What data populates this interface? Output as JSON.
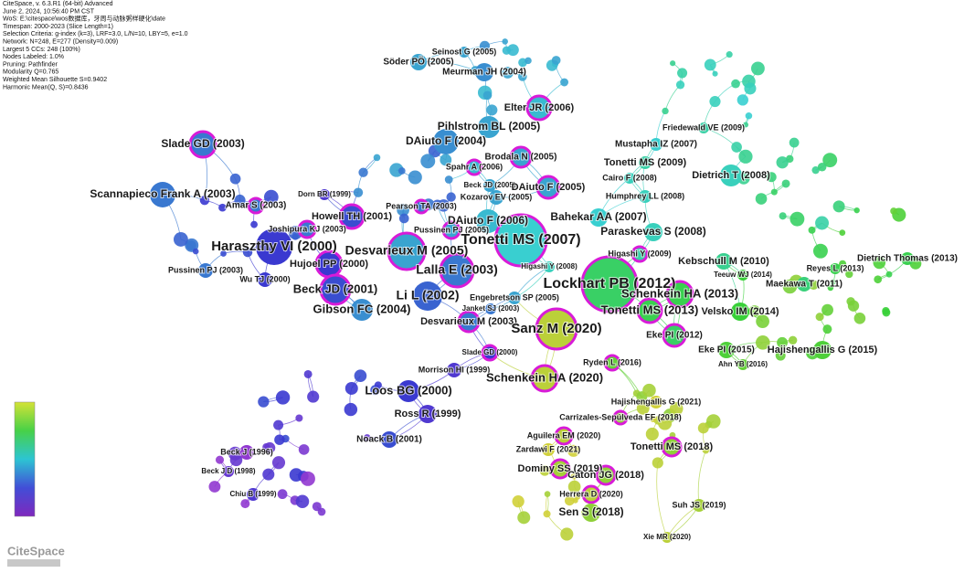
{
  "header": {
    "lines": [
      "CiteSpace, v. 6.3.R1 (64-bit) Advanced",
      "June 2, 2024, 10:56:40 PM CST",
      "WoS: E:\\citespace\\wos数据库，牙周与动脉粥样硬化\\date",
      "Timespan: 2000-2023 (Slice Length=1)",
      "Selection Criteria: g-index (k=3), LRF=3.0, L/N=10, LBY=5, e=1.0",
      "Network: N=248, E=277 (Density=0.009)",
      "Largest 5 CCs: 248 (100%)",
      "Nodes Labeled: 1.0%",
      "Pruning: Pathfinder",
      "Modularity Q=0.765",
      "Weighted Mean Silhouette S=0.9402",
      "Harmonic Mean(Q, S)=0.8436"
    ]
  },
  "logo": "CiteSpace",
  "nodes": [
    {
      "label": "Seinost G (2005)"
    },
    {
      "label": "Söder PÖ (2005)"
    },
    {
      "label": "Meurman JH (2004)"
    },
    {
      "label": "Elter JR (2006)"
    },
    {
      "label": "Pihlstrom BL (2005)"
    },
    {
      "label": "Slade GD (2003)"
    },
    {
      "label": "DAiuto F (2004)"
    },
    {
      "label": "Brodala N (2005)"
    },
    {
      "label": "Spahr A (2006)"
    },
    {
      "label": "Friedewald VE (2009)"
    },
    {
      "label": "Mustapha IZ (2007)"
    },
    {
      "label": "Tonetti MS (2009)"
    },
    {
      "label": "Cairo F (2008)"
    },
    {
      "label": "Dietrich T (2008)"
    },
    {
      "label": "Scannapieco Frank A (2003)"
    },
    {
      "label": "Dorn BR (1999)"
    },
    {
      "label": "Beck JD (2005)"
    },
    {
      "label": "DAiuto F (2005)"
    },
    {
      "label": "Kozarov EV (2005)"
    },
    {
      "label": "Humphrey LL (2008)"
    },
    {
      "label": "Amar S (2003)"
    },
    {
      "label": "Pearson TA (2003)"
    },
    {
      "label": "Howell TH (2001)"
    },
    {
      "label": "DAiuto F (2006)"
    },
    {
      "label": "Bahekar AA (2007)"
    },
    {
      "label": "Joshipura KJ (2003)"
    },
    {
      "label": "Pussinen PJ (2005)"
    },
    {
      "label": "Tonetti MS (2007)"
    },
    {
      "label": "Paraskevas S (2008)"
    },
    {
      "label": "Higashi Y (2009)"
    },
    {
      "label": "Haraszthy VI (2000)"
    },
    {
      "label": "Desvarieux M (2005)"
    },
    {
      "label": "Hujoel PP (2000)"
    },
    {
      "label": "Higashi Y (2008)"
    },
    {
      "label": "Kebschull M (2010)"
    },
    {
      "label": "Dietrich Thomas (2013)"
    },
    {
      "label": "Reyes L (2013)"
    },
    {
      "label": "Teeuw WJ (2014)"
    },
    {
      "label": "Pussinen PJ (2003)"
    },
    {
      "label": "Lalla E (2003)"
    },
    {
      "label": "Wu TJ (2000)"
    },
    {
      "label": "Lockhart PB (2012)"
    },
    {
      "label": "Maekawa T (2011)"
    },
    {
      "label": "Beck JD (2001)"
    },
    {
      "label": "Li L (2002)"
    },
    {
      "label": "Schenkein HA (2013)"
    },
    {
      "label": "Engebretson SP (2005)"
    },
    {
      "label": "Janket SJ (2003)"
    },
    {
      "label": "Gibson FC (2004)"
    },
    {
      "label": "Tonetti MS (2013)"
    },
    {
      "label": "Velsko IM (2014)"
    },
    {
      "label": "Desvarieux M (2003)"
    },
    {
      "label": "Sanz M (2020)"
    },
    {
      "label": "Eke PI (2012)"
    },
    {
      "label": "Eke PI (2015)"
    },
    {
      "label": "Hajishengallis G (2015)"
    },
    {
      "label": "Slade GD (2000)"
    },
    {
      "label": "Ryden L (2016)"
    },
    {
      "label": "Ahn YB (2016)"
    },
    {
      "label": "Morrison HI (1999)"
    },
    {
      "label": "Schenkein HA (2020)"
    },
    {
      "label": "Loos BG (2000)"
    },
    {
      "label": "Hajishengallis G (2021)"
    },
    {
      "label": "Ross R (1999)"
    },
    {
      "label": "Carrizales-Sepúlveda EF (2018)"
    },
    {
      "label": "Aguilera EM (2020)"
    },
    {
      "label": "Noack B (2001)"
    },
    {
      "label": "Beck J (1996)"
    },
    {
      "label": "Tonetti MS (2018)"
    },
    {
      "label": "Zardawi F (2021)"
    },
    {
      "label": "Beck J D (1998)"
    },
    {
      "label": "Dominy SS (2019)"
    },
    {
      "label": "Caton JG (2018)"
    },
    {
      "label": "Chiu B (1999)"
    },
    {
      "label": "Herrera D (2020)"
    },
    {
      "label": "Suh JS (2019)"
    },
    {
      "label": "Sen S (2018)"
    },
    {
      "label": "Xie MR (2020)"
    }
  ]
}
